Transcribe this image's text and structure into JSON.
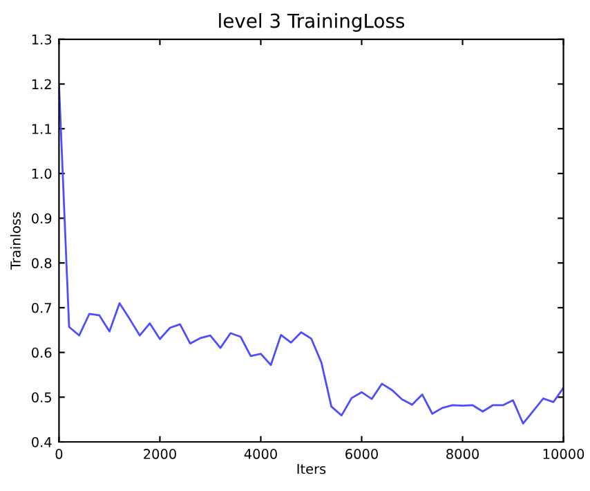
{
  "chart_data": {
    "type": "line",
    "title": "level 3 TrainingLoss",
    "xlabel": "Iters",
    "ylabel": "Trainloss",
    "x": [
      0,
      200,
      400,
      600,
      800,
      1000,
      1200,
      1400,
      1600,
      1800,
      2000,
      2200,
      2400,
      2600,
      2800,
      3000,
      3200,
      3400,
      3600,
      3800,
      4000,
      4200,
      4400,
      4600,
      4800,
      5000,
      5200,
      5400,
      5600,
      5800,
      6000,
      6200,
      6400,
      6600,
      6800,
      7000,
      7200,
      7400,
      7600,
      7800,
      8000,
      8200,
      8400,
      8600,
      8800,
      9000,
      9200,
      9400,
      9600,
      9800,
      10000
    ],
    "series": [
      {
        "color": "#4d4dff",
        "values": [
          1.2,
          0.657,
          0.638,
          0.686,
          0.683,
          0.647,
          0.71,
          0.675,
          0.638,
          0.665,
          0.63,
          0.655,
          0.663,
          0.62,
          0.632,
          0.638,
          0.61,
          0.643,
          0.635,
          0.592,
          0.597,
          0.572,
          0.639,
          0.622,
          0.645,
          0.631,
          0.578,
          0.479,
          0.459,
          0.498,
          0.511,
          0.496,
          0.53,
          0.516,
          0.495,
          0.483,
          0.506,
          0.463,
          0.476,
          0.482,
          0.481,
          0.482,
          0.468,
          0.482,
          0.482,
          0.493,
          0.441,
          0.469,
          0.497,
          0.489,
          0.521
        ]
      }
    ],
    "xlim": [
      0,
      10000
    ],
    "xticks": [
      0,
      2000,
      4000,
      6000,
      8000,
      10000
    ],
    "ylim": [
      0.4,
      1.3
    ],
    "yticks": [
      0.4,
      0.5,
      0.6,
      0.7,
      0.8,
      0.9,
      {
        "value": 1,
        "label": "1.0"
      },
      1.1,
      1.2,
      1.3
    ],
    "grid": false,
    "legend": false,
    "marker": "none",
    "line_style": "solid"
  }
}
